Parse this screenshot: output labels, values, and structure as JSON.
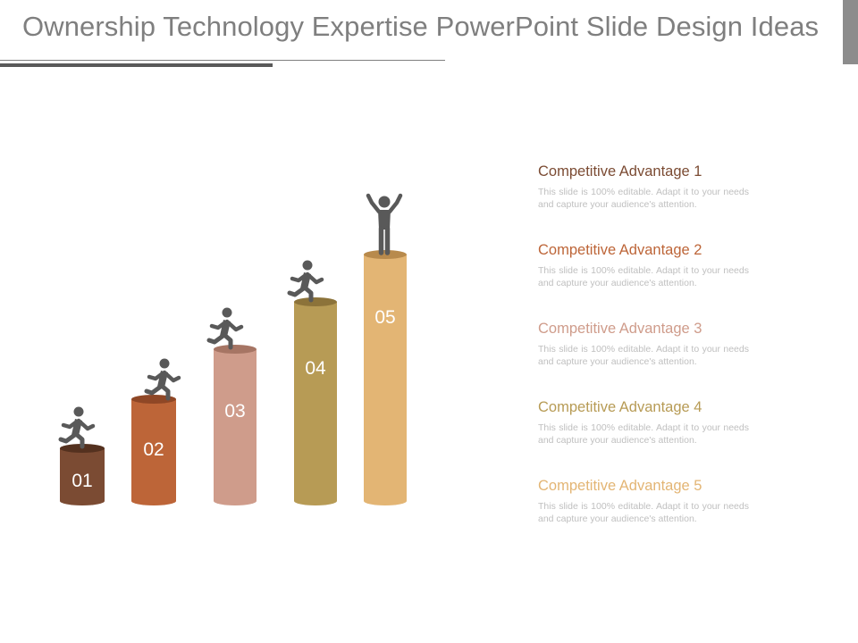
{
  "slide": {
    "title": "Ownership Technology Expertise PowerPoint Slide Design Ideas"
  },
  "columns": [
    {
      "label": "01",
      "color": "#7b4b33",
      "figure": "runner-icon"
    },
    {
      "label": "02",
      "color": "#bd6538",
      "figure": "runner-icon"
    },
    {
      "label": "03",
      "color": "#cf9c8b",
      "figure": "runner-icon"
    },
    {
      "label": "04",
      "color": "#b79b55",
      "figure": "runner-icon"
    },
    {
      "label": "05",
      "color": "#e3b574",
      "figure": "winner-icon"
    }
  ],
  "items": [
    {
      "title": "Competitive Advantage 1",
      "color": "#7b4b33",
      "desc": "This slide is 100% editable. Adapt it to your needs and capture your audience's attention."
    },
    {
      "title": "Competitive Advantage 2",
      "color": "#bd6538",
      "desc": "This slide is 100% editable. Adapt it to your needs and capture your audience's attention."
    },
    {
      "title": "Competitive Advantage 3",
      "color": "#cf9c8b",
      "desc": "This slide is 100% editable. Adapt it to your needs and capture your audience's attention."
    },
    {
      "title": "Competitive Advantage 4",
      "color": "#b79b55",
      "desc": "This slide is 100% editable. Adapt it to your needs and capture your audience's attention."
    },
    {
      "title": "Competitive Advantage 5",
      "color": "#e3b574",
      "desc": "This slide is 100% editable. Adapt it to your needs and capture your audience's attention."
    }
  ]
}
